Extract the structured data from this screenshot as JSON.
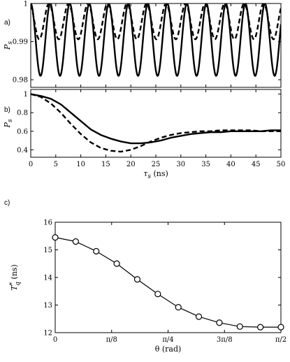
{
  "chart_data": [
    {
      "panel_label": "a)",
      "type": "line",
      "ylabel": "P",
      "ylabel_sub": "s",
      "xlim": [
        0,
        50
      ],
      "ylim": [
        0.978,
        1.0
      ],
      "yticks": [
        0.98,
        0.99,
        1
      ],
      "ytick_labels": [
        "0.98",
        "0.99",
        "1"
      ],
      "xticks": [
        0,
        5,
        10,
        15,
        20,
        25,
        30,
        35,
        40,
        45,
        50
      ],
      "grid": false,
      "series": [
        {
          "style": "solid",
          "model": "1 - a*(1-cos(2*pi*x/T))",
          "amplitude": 0.0095,
          "period": 3.9,
          "phase": 0,
          "samples": 400
        },
        {
          "style": "dashed",
          "model": "1 - a*(1-cos(2*pi*x/T + phi))",
          "amplitude": 0.0047,
          "period": 3.9,
          "phase": 0.4,
          "samples": 400
        }
      ]
    },
    {
      "panel_label": "b)",
      "type": "line",
      "ylabel": "P",
      "ylabel_sub": "s",
      "xlabel": "τ",
      "xlabel_sub": "s",
      "xlabel_unit": "(ns)",
      "xlim": [
        0,
        50
      ],
      "ylim": [
        0.32,
        1.05
      ],
      "yticks": [
        0.4,
        0.6,
        0.8,
        1
      ],
      "ytick_labels": [
        "0.4",
        "0.6",
        "0.8",
        "1"
      ],
      "xticks": [
        0,
        5,
        10,
        15,
        20,
        25,
        30,
        35,
        40,
        45,
        50
      ],
      "xtick_labels": [
        "0",
        "5",
        "10",
        "15",
        "20",
        "25",
        "30",
        "35",
        "40",
        "45",
        "50"
      ],
      "grid": false,
      "series": [
        {
          "style": "solid",
          "x": [
            0,
            2,
            4,
            6,
            8,
            10,
            12,
            14,
            16,
            18,
            20,
            22,
            24,
            26,
            28,
            30,
            32,
            34,
            36,
            38,
            40,
            42,
            44,
            46,
            48,
            50
          ],
          "y": [
            1.0,
            0.98,
            0.95,
            0.89,
            0.8,
            0.71,
            0.62,
            0.56,
            0.52,
            0.49,
            0.47,
            0.47,
            0.48,
            0.5,
            0.53,
            0.55,
            0.57,
            0.58,
            0.59,
            0.59,
            0.6,
            0.6,
            0.6,
            0.6,
            0.61,
            0.61
          ]
        },
        {
          "style": "dashed",
          "x": [
            0,
            2,
            4,
            6,
            8,
            10,
            12,
            14,
            16,
            18,
            20,
            22,
            24,
            26,
            28,
            30,
            32,
            34,
            36,
            38,
            40,
            42,
            44,
            46,
            48,
            50
          ],
          "y": [
            1.0,
            0.97,
            0.9,
            0.8,
            0.68,
            0.57,
            0.48,
            0.42,
            0.39,
            0.38,
            0.4,
            0.44,
            0.49,
            0.53,
            0.56,
            0.58,
            0.59,
            0.6,
            0.6,
            0.61,
            0.61,
            0.61,
            0.61,
            0.6,
            0.6,
            0.6
          ]
        }
      ]
    },
    {
      "panel_label": "c)",
      "type": "line",
      "markers": "circle",
      "ylabel": "T",
      "ylabel_sup": "*",
      "ylabel_sub": "q",
      "ylabel_unit": "(ns)",
      "xlabel": "θ (rad)",
      "xlim": [
        0,
        1.5708
      ],
      "ylim": [
        12,
        16
      ],
      "yticks": [
        12,
        13,
        14,
        15,
        16
      ],
      "ytick_labels": [
        "12",
        "13",
        "14",
        "15",
        "16"
      ],
      "xticks": [
        0,
        0.3927,
        0.7854,
        1.1781,
        1.5708
      ],
      "xtick_labels": [
        "0",
        "π/8",
        "π/4",
        "3π/8",
        "π/2"
      ],
      "grid": false,
      "series": [
        {
          "style": "solid",
          "x": [
            0,
            0.1428,
            0.2856,
            0.4284,
            0.5712,
            0.714,
            0.8568,
            0.9996,
            1.1424,
            1.2852,
            1.428,
            1.5708
          ],
          "y": [
            15.45,
            15.3,
            14.95,
            14.5,
            13.93,
            13.4,
            12.92,
            12.58,
            12.36,
            12.22,
            12.2,
            12.2
          ]
        }
      ]
    }
  ]
}
